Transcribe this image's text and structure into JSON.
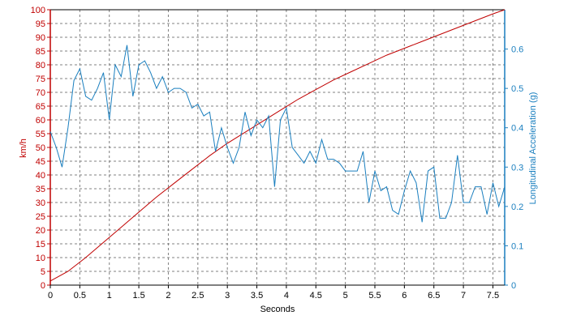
{
  "chart_data": {
    "type": "line",
    "title": "",
    "xlabel": "Seconds",
    "ylabel": "km/h",
    "ylabel_right": "Longitudinal Acceleration (g)",
    "xlim": [
      0,
      7.7
    ],
    "ylim": [
      0,
      100
    ],
    "ylim_right": [
      0,
      0.7
    ],
    "grid": true,
    "legend": "none",
    "x_ticks": [
      "0",
      "0.5",
      "1",
      "1.5",
      "2",
      "2.5",
      "3",
      "3.5",
      "4",
      "4.5",
      "5",
      "5.5",
      "6",
      "6.5",
      "7",
      "7.5"
    ],
    "y_ticks": [
      "0",
      "5",
      "10",
      "15",
      "20",
      "25",
      "30",
      "35",
      "40",
      "45",
      "50",
      "55",
      "60",
      "65",
      "70",
      "75",
      "80",
      "85",
      "90",
      "95",
      "100"
    ],
    "y_ticks_right": [
      "0",
      "0.1",
      "0.2",
      "0.3",
      "0.4",
      "0.5",
      "0.6"
    ],
    "colors": {
      "speed": "#c00000",
      "accel": "#1a7fbf",
      "left_axis": "#c00000",
      "right_axis": "#1a7fbf",
      "grid": "#808080",
      "frame": "#000000"
    },
    "series": [
      {
        "axis": "left",
        "x": [
          0,
          0.3,
          0.6,
          0.9,
          1.2,
          1.5,
          1.8,
          2.1,
          2.4,
          2.7,
          3.0,
          3.3,
          3.6,
          3.9,
          4.2,
          4.5,
          4.8,
          5.1,
          5.4,
          5.7,
          6.0,
          6.3,
          6.6,
          6.9,
          7.2,
          7.5,
          7.7
        ],
        "values": [
          1.5,
          5,
          10,
          15.5,
          21,
          26.5,
          32,
          37,
          42,
          47,
          51.5,
          55.5,
          59.5,
          63.5,
          67.5,
          71,
          74.5,
          77.5,
          80.5,
          83.5,
          86,
          88.5,
          91,
          93.5,
          96,
          98.5,
          100
        ]
      },
      {
        "axis": "right",
        "x": [
          0,
          0.1,
          0.2,
          0.3,
          0.4,
          0.5,
          0.6,
          0.7,
          0.8,
          0.9,
          1.0,
          1.1,
          1.2,
          1.3,
          1.4,
          1.5,
          1.6,
          1.7,
          1.8,
          1.9,
          2.0,
          2.1,
          2.2,
          2.3,
          2.4,
          2.5,
          2.6,
          2.7,
          2.8,
          2.9,
          3.0,
          3.1,
          3.2,
          3.3,
          3.4,
          3.5,
          3.6,
          3.7,
          3.8,
          3.9,
          4.0,
          4.1,
          4.2,
          4.3,
          4.4,
          4.5,
          4.6,
          4.7,
          4.8,
          4.9,
          5.0,
          5.1,
          5.2,
          5.3,
          5.4,
          5.5,
          5.6,
          5.7,
          5.8,
          5.9,
          6.0,
          6.1,
          6.2,
          6.3,
          6.4,
          6.5,
          6.6,
          6.7,
          6.8,
          6.9,
          7.0,
          7.1,
          7.2,
          7.3,
          7.4,
          7.5,
          7.6,
          7.7
        ],
        "values": [
          0.39,
          0.35,
          0.3,
          0.4,
          0.52,
          0.55,
          0.48,
          0.47,
          0.5,
          0.54,
          0.42,
          0.56,
          0.53,
          0.61,
          0.48,
          0.56,
          0.57,
          0.54,
          0.5,
          0.53,
          0.49,
          0.5,
          0.5,
          0.49,
          0.45,
          0.46,
          0.43,
          0.44,
          0.34,
          0.4,
          0.35,
          0.31,
          0.35,
          0.44,
          0.38,
          0.42,
          0.4,
          0.43,
          0.25,
          0.42,
          0.45,
          0.35,
          0.33,
          0.31,
          0.34,
          0.31,
          0.37,
          0.32,
          0.32,
          0.31,
          0.29,
          0.29,
          0.29,
          0.34,
          0.21,
          0.29,
          0.24,
          0.25,
          0.19,
          0.18,
          0.24,
          0.29,
          0.26,
          0.16,
          0.29,
          0.3,
          0.17,
          0.17,
          0.21,
          0.33,
          0.21,
          0.21,
          0.25,
          0.25,
          0.18,
          0.26,
          0.2,
          0.25
        ]
      }
    ]
  }
}
